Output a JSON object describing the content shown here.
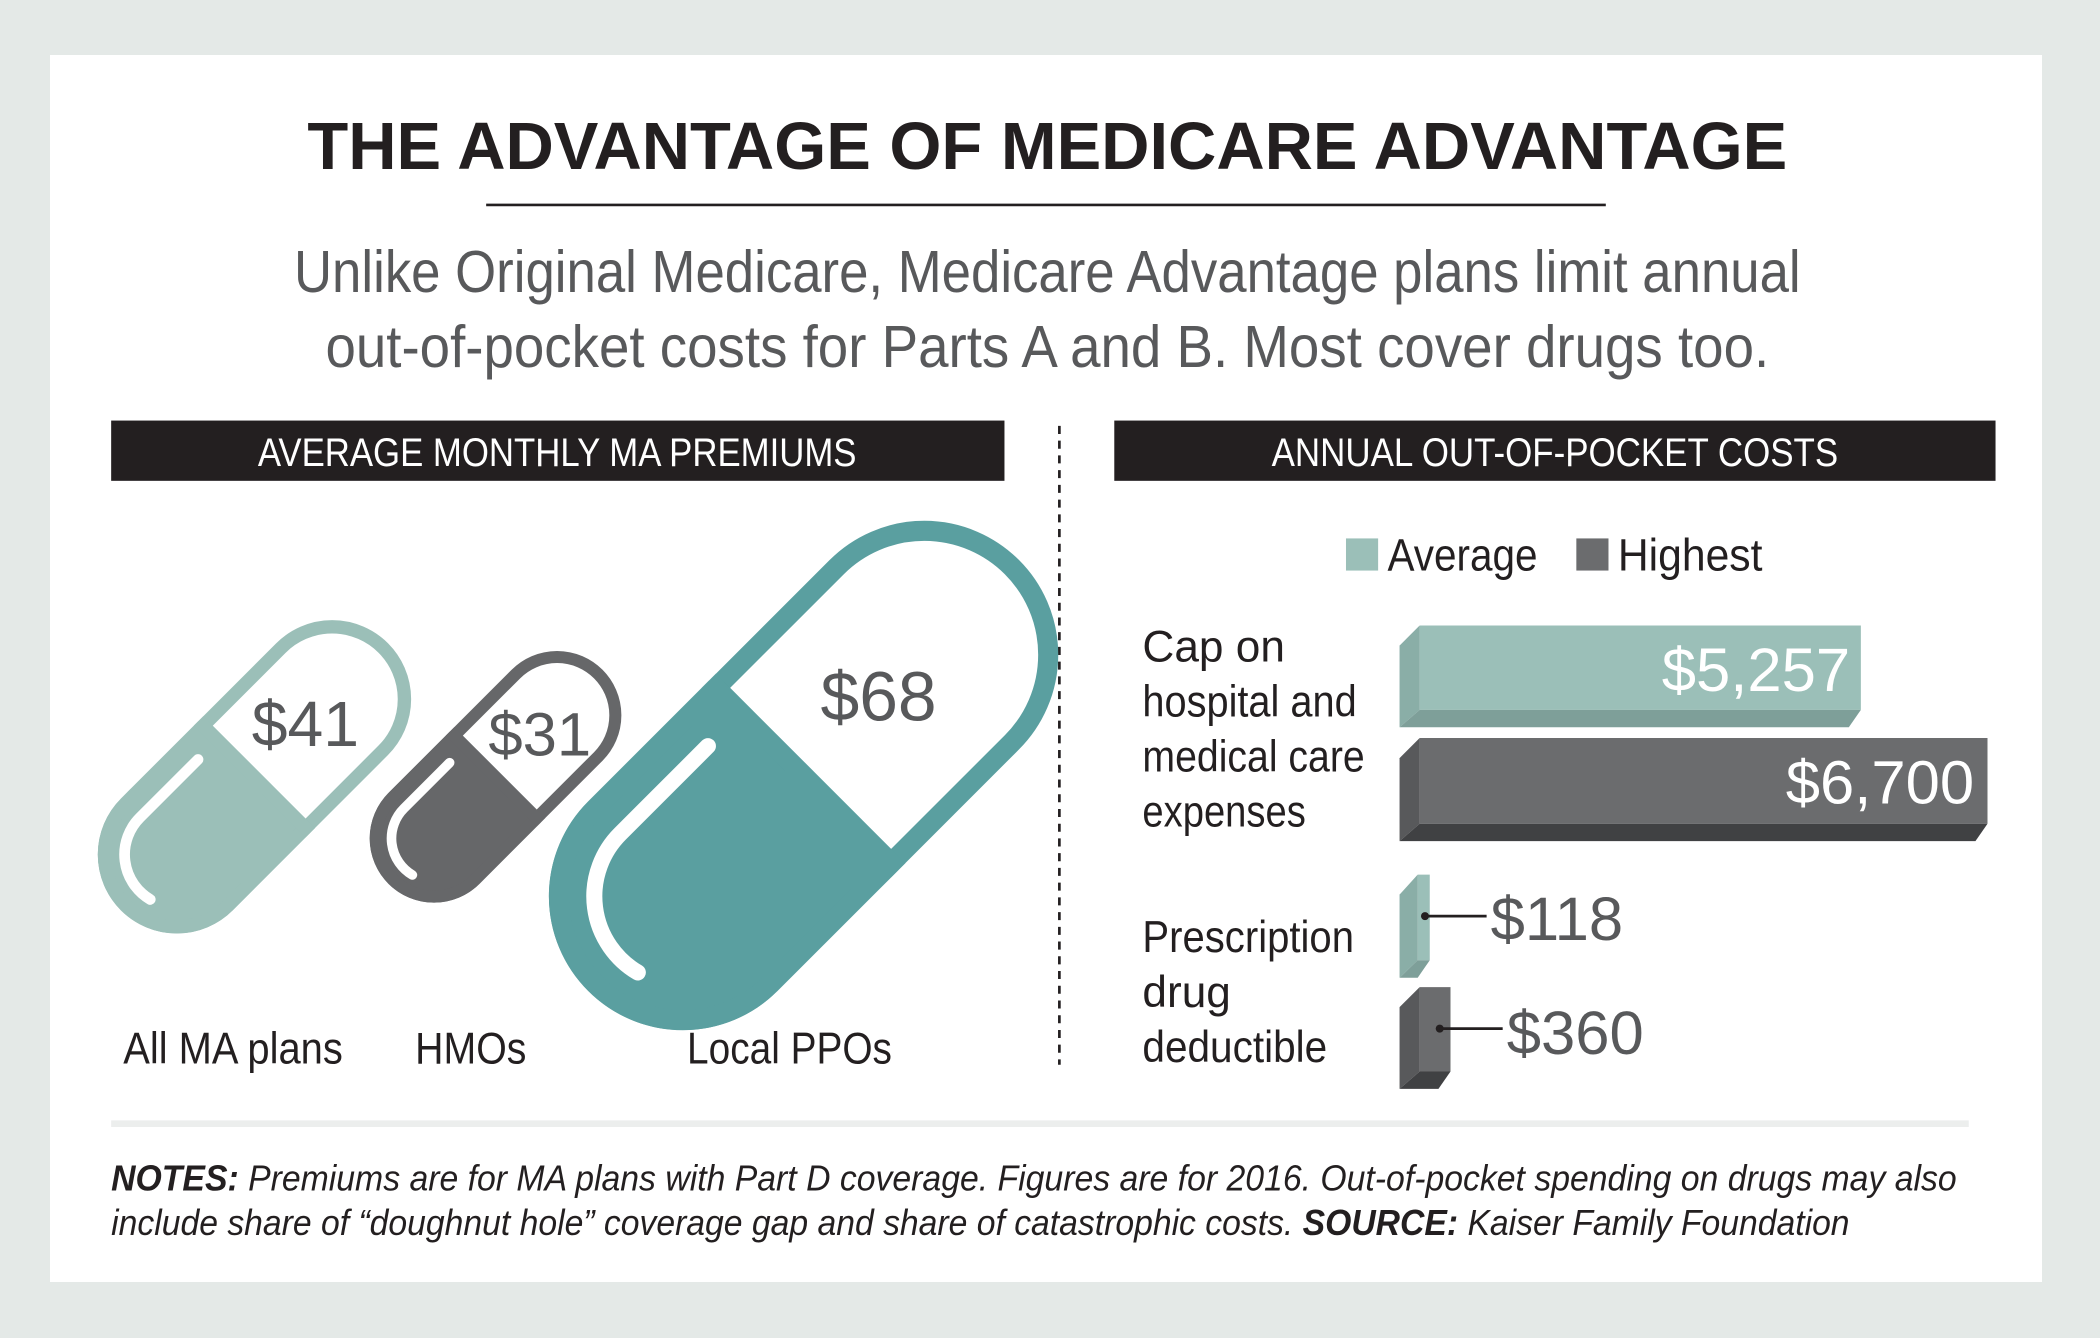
{
  "title": "THE ADVANTAGE OF MEDICARE ADVANTAGE",
  "subtitle": [
    "Unlike Original Medicare, Medicare Advantage plans limit annual",
    "out-of-pocket costs for Parts A and B. Most cover drugs too."
  ],
  "colors": {
    "average": "#9bbfb8",
    "highest": "#6b6c6e",
    "hmo": "#666769",
    "ppo": "#5a9fa0",
    "header_bg": "#231f20"
  },
  "chart_data": [
    {
      "type": "bar",
      "title": "AVERAGE MONTHLY MA PREMIUMS",
      "categories": [
        "All MA plans",
        "HMOs",
        "Local PPOs"
      ],
      "values": [
        41,
        31,
        68
      ],
      "value_labels": [
        "$41",
        "$31",
        "$68"
      ]
    },
    {
      "type": "bar",
      "title": "ANNUAL OUT-OF-POCKET COSTS",
      "legend": [
        "Average",
        "Highest"
      ],
      "legend_position": "top",
      "categories": [
        [
          "Cap on",
          "hospital and",
          "medical care",
          "expenses"
        ],
        [
          "Prescription",
          "drug",
          "deductible"
        ]
      ],
      "series": [
        {
          "name": "Average",
          "values": [
            5257,
            118
          ],
          "labels": [
            "$5,257",
            "$118"
          ]
        },
        {
          "name": "Highest",
          "values": [
            6700,
            360
          ],
          "labels": [
            "$6,700",
            "$360"
          ]
        }
      ]
    }
  ],
  "notes": {
    "notes_label": "NOTES:",
    "notes_text_1": " Premiums are for MA plans with Part D coverage. Figures are for 2016. Out-of-pocket spending on drugs may also",
    "notes_text_2": "include share of “doughnut hole” coverage gap and share of catastrophic costs. ",
    "source_label": "SOURCE:",
    "source_text": " Kaiser Family Foundation"
  }
}
